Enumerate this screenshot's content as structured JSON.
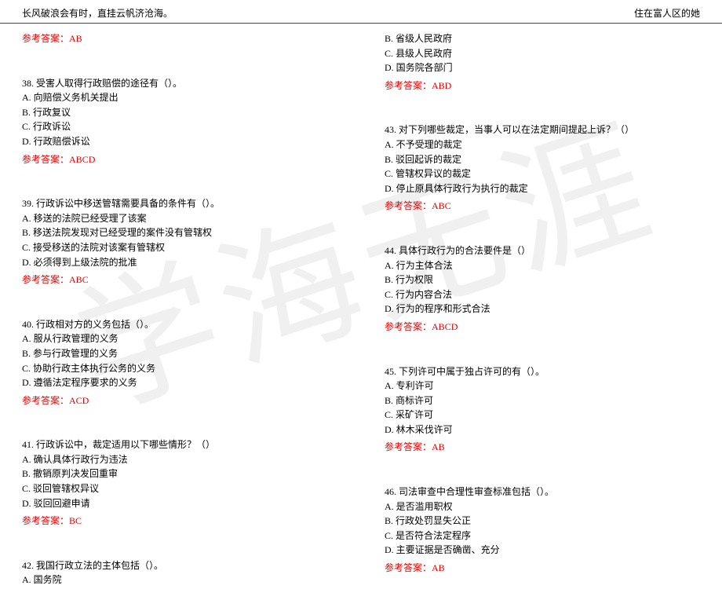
{
  "header": {
    "left": "长风破浪会有时，直挂云帆济沧海。",
    "right": "住在富人区的她"
  },
  "watermark": "学海无涯",
  "left_col": {
    "ans_pre": {
      "label": "参考答案：",
      "value": "AB"
    },
    "q38": {
      "stem": "38. 受害人取得行政赔偿的途径有（）。",
      "opts": [
        "A. 向赔偿义务机关提出",
        "B. 行政复议",
        "C. 行政诉讼",
        "D. 行政赔偿诉讼"
      ],
      "ans_label": "参考答案：",
      "ans_value": "ABCD"
    },
    "q39": {
      "stem": "39. 行政诉讼中移送管辖需要具备的条件有（）。",
      "opts": [
        "A. 移送的法院已经受理了该案",
        "B. 移送法院发现对已经受理的案件没有管辖权",
        "C. 接受移送的法院对该案有管辖权",
        "D. 必须得到上级法院的批准"
      ],
      "ans_label": "参考答案：",
      "ans_value": "ABC"
    },
    "q40": {
      "stem": "40. 行政相对方的义务包括（）。",
      "opts": [
        "A. 服从行政管理的义务",
        "B. 参与行政管理的义务",
        "C. 协助行政主体执行公务的义务",
        "D. 遵循法定程序要求的义务"
      ],
      "ans_label": "参考答案：",
      "ans_value": "ACD"
    },
    "q41": {
      "stem": "41. 行政诉讼中，裁定适用以下哪些情形？（）",
      "opts": [
        "A. 确认具体行政行为违法",
        "B. 撤销原判决发回重审",
        "C. 驳回管辖权异议",
        "D. 驳回回避申请"
      ],
      "ans_label": "参考答案：",
      "ans_value": "BC"
    },
    "q42": {
      "stem": "42. 我国行政立法的主体包括（）。",
      "opts": [
        "A. 国务院"
      ]
    }
  },
  "right_col": {
    "q42cont": {
      "opts": [
        "B. 省级人民政府",
        "C. 县级人民政府",
        "D. 国务院各部门"
      ],
      "ans_label": "参考答案：",
      "ans_value": "ABD"
    },
    "q43": {
      "stem": "43. 对下列哪些裁定，当事人可以在法定期间提起上诉？（）",
      "opts": [
        "A. 不予受理的裁定",
        "B. 驳回起诉的裁定",
        "C. 管辖权异议的裁定",
        "D. 停止原具体行政行为执行的裁定"
      ],
      "ans_label": "参考答案：",
      "ans_value": "ABC"
    },
    "q44": {
      "stem": "44. 具体行政行为的合法要件是（）",
      "opts": [
        "A. 行为主体合法",
        "B. 行为权限",
        "C. 行为内容合法",
        "D. 行为的程序和形式合法"
      ],
      "ans_label": "参考答案：",
      "ans_value": "ABCD"
    },
    "q45": {
      "stem": "45. 下列许可中属于独占许可的有（）。",
      "opts": [
        "A. 专利许可",
        "B. 商标许可",
        "C. 采矿许可",
        "D. 林木采伐许可"
      ],
      "ans_label": "参考答案：",
      "ans_value": "AB"
    },
    "q46": {
      "stem": "46. 司法审查中合理性审查标准包括（）。",
      "opts": [
        "A. 是否滥用职权",
        "B. 行政处罚显失公正",
        "C. 是否符合法定程序",
        "D. 主要证据是否确凿、充分"
      ],
      "ans_label": "参考答案：",
      "ans_value": "AB"
    }
  }
}
